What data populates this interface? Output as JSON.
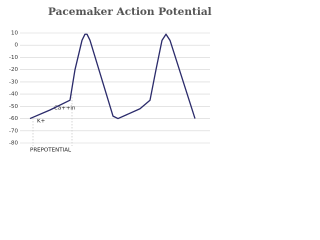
{
  "chart_data": {
    "type": "line",
    "title": "Pacemaker Action Potential",
    "annotations": [
      "K+",
      "Ca++in",
      "PREPOTENTIAL"
    ],
    "x": [
      10,
      30,
      50,
      55,
      62,
      65,
      67,
      70,
      93,
      98,
      120,
      130,
      136,
      142,
      146,
      150,
      175
    ],
    "series": [
      {
        "color": "#2b2b6b",
        "values": [
          -60,
          -53,
          -45,
          -20,
          4,
          9,
          9,
          4,
          -58,
          -60,
          -52,
          -45,
          -20,
          4,
          9,
          4,
          -60
        ]
      }
    ],
    "xlim": [
      0,
      190
    ],
    "ylim": [
      -80,
      10
    ],
    "yticks": [
      10,
      0,
      -10,
      -20,
      -30,
      -40,
      -50,
      -60,
      -70,
      -80
    ],
    "grid": true
  }
}
